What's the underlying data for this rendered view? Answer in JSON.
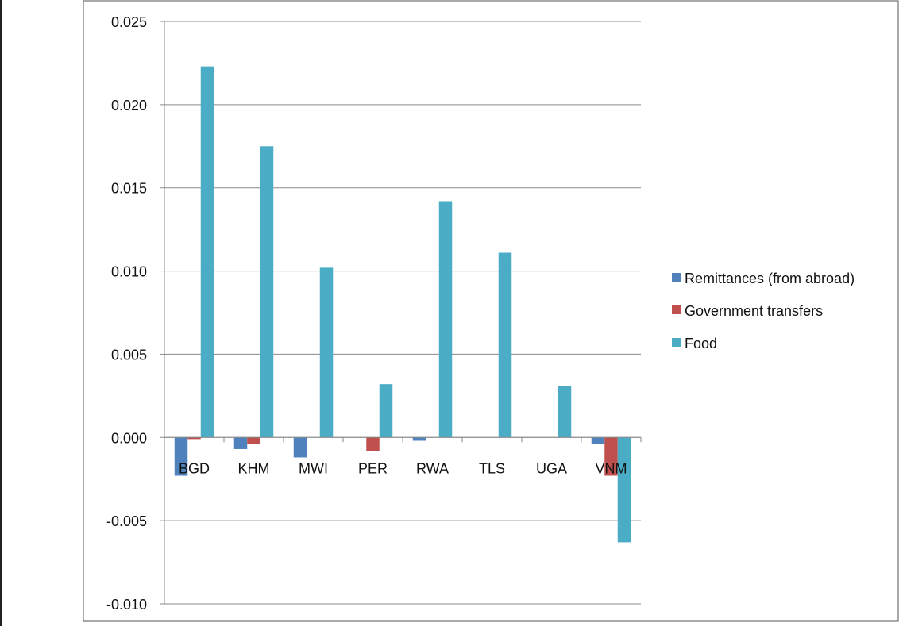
{
  "chart_data": {
    "type": "bar",
    "title": "",
    "xlabel": "",
    "ylabel": "",
    "categories": [
      "BGD",
      "KHM",
      "MWI",
      "PER",
      "RWA",
      "TLS",
      "UGA",
      "VNM"
    ],
    "series": [
      {
        "name": "Remittances (from abroad)",
        "color": "#4f81bd",
        "values": [
          -0.0023,
          -0.0007,
          -0.0012,
          0.0,
          -0.0002,
          0.0,
          0.0,
          -0.0004
        ]
      },
      {
        "name": "Government transfers",
        "color": "#c0504d",
        "values": [
          -0.0001,
          -0.0004,
          0.0,
          -0.0008,
          0.0,
          0.0,
          0.0,
          -0.0023
        ]
      },
      {
        "name": "Food",
        "color": "#4bacc6",
        "values": [
          0.0223,
          0.0175,
          0.0102,
          0.0032,
          0.0142,
          0.0111,
          0.0031,
          -0.0063
        ]
      }
    ],
    "ylim": [
      -0.01,
      0.025
    ],
    "yticks": [
      "0.025",
      "0.020",
      "0.015",
      "0.010",
      "0.005",
      "0.000",
      "-0.005",
      "-0.010"
    ],
    "ytick_values": [
      0.025,
      0.02,
      0.015,
      0.01,
      0.005,
      0.0,
      -0.005,
      -0.01
    ],
    "grid": true,
    "legend_position": "right"
  }
}
